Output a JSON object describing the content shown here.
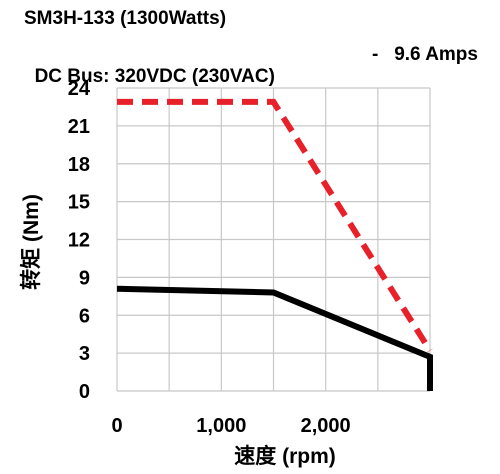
{
  "header": {
    "line1": "SM3H-133 (1300Watts)",
    "line2_left": "DC Bus: 320VDC (230VAC)",
    "line2_right": "-   9.6 Amps"
  },
  "chart_data": {
    "type": "line",
    "title": "SM3H-133 (1300Watts)",
    "subtitle": "DC Bus: 320VDC (230VAC)   -   9.6 Amps",
    "xlabel": "速度 (rpm)",
    "ylabel": "转矩 (Nm)",
    "xlim": [
      0,
      3000
    ],
    "ylim": [
      0,
      24
    ],
    "xticks": [
      0,
      1000,
      2000
    ],
    "xtick_labels": [
      "0",
      "1,000",
      "2,000"
    ],
    "yticks": [
      0,
      3,
      6,
      9,
      12,
      15,
      18,
      21,
      24
    ],
    "ytick_labels": [
      "0",
      "3",
      "6",
      "9",
      "12",
      "15",
      "18",
      "21",
      "24"
    ],
    "grid": true,
    "series": [
      {
        "color": "#e8202a",
        "style": "dashed",
        "x": [
          0,
          1500,
          3000
        ],
        "y": [
          22.9,
          22.9,
          3.2
        ]
      },
      {
        "color": "#000000",
        "style": "solid",
        "x": [
          0,
          1500,
          3000,
          3000
        ],
        "y": [
          8.1,
          7.8,
          2.7,
          0
        ]
      }
    ]
  }
}
